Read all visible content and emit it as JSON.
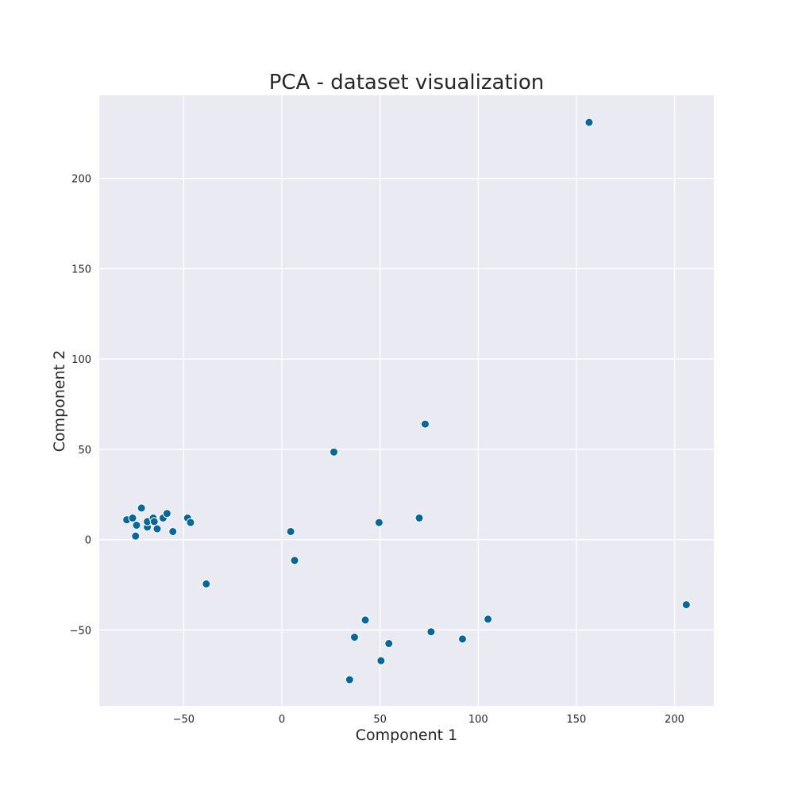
{
  "chart_data": {
    "type": "scatter",
    "title": "PCA - dataset visualization",
    "xlabel": "Component 1",
    "ylabel": "Component 2",
    "xlim": [
      -93,
      220
    ],
    "ylim": [
      -92,
      246
    ],
    "xticks": [
      -50,
      0,
      50,
      100,
      150,
      200
    ],
    "yticks": [
      -50,
      0,
      50,
      100,
      150,
      200
    ],
    "xtick_labels": [
      "−50",
      "0",
      "50",
      "100",
      "150",
      "200"
    ],
    "ytick_labels": [
      "−50",
      "0",
      "50",
      "100",
      "150",
      "200"
    ],
    "grid": true,
    "background": "#eaeaf2",
    "point_color": "#00689c",
    "points": [
      {
        "x": -79,
        "y": 11
      },
      {
        "x": -76,
        "y": 12
      },
      {
        "x": -74,
        "y": 8
      },
      {
        "x": -74.5,
        "y": 2
      },
      {
        "x": -71.5,
        "y": 17.5
      },
      {
        "x": -68.5,
        "y": 7
      },
      {
        "x": -68.5,
        "y": 10
      },
      {
        "x": -65.5,
        "y": 12
      },
      {
        "x": -65,
        "y": 10
      },
      {
        "x": -63.5,
        "y": 6
      },
      {
        "x": -60.5,
        "y": 12
      },
      {
        "x": -58.5,
        "y": 14.5
      },
      {
        "x": -55.5,
        "y": 4.5
      },
      {
        "x": -48,
        "y": 12
      },
      {
        "x": -46.5,
        "y": 9.5
      },
      {
        "x": -38.5,
        "y": -24.5
      },
      {
        "x": 4.5,
        "y": 4.5
      },
      {
        "x": 6.5,
        "y": -11.5
      },
      {
        "x": 26.5,
        "y": 48.5
      },
      {
        "x": 49.5,
        "y": 9.5
      },
      {
        "x": 70,
        "y": 12
      },
      {
        "x": 73,
        "y": 64
      },
      {
        "x": 34.5,
        "y": -77.5
      },
      {
        "x": 37,
        "y": -54
      },
      {
        "x": 42.5,
        "y": -44.5
      },
      {
        "x": 50.5,
        "y": -67
      },
      {
        "x": 54.5,
        "y": -57.5
      },
      {
        "x": 76,
        "y": -51
      },
      {
        "x": 92,
        "y": -55
      },
      {
        "x": 105,
        "y": -44
      },
      {
        "x": 156.5,
        "y": 231
      },
      {
        "x": 206,
        "y": -36
      }
    ]
  }
}
